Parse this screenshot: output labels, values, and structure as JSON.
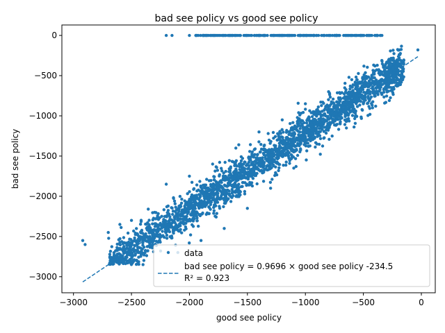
{
  "chart_data": {
    "type": "scatter",
    "title": "bad see policy vs good see policy",
    "xlabel": "good see policy",
    "ylabel": "bad see policy",
    "xlim": [
      -3100,
      120
    ],
    "ylim": [
      -3200,
      130
    ],
    "xticks": [
      -3000,
      -2500,
      -2000,
      -1500,
      -1000,
      -500,
      0
    ],
    "yticks": [
      -3000,
      -2500,
      -2000,
      -1500,
      -1000,
      -500,
      0
    ],
    "xtick_labels": [
      "−3000",
      "−2500",
      "−2000",
      "−1500",
      "−1000",
      "−500",
      "0"
    ],
    "ytick_labels": [
      "−3000",
      "−2500",
      "−2000",
      "−1500",
      "−1000",
      "−500",
      "0"
    ],
    "grid": false,
    "legend_position": "lower-right",
    "color": "#1f77b4",
    "series": [
      {
        "name": "data",
        "kind": "points",
        "description_points": [
          [
            -2920,
            -2550
          ],
          [
            -2900,
            -2600
          ],
          [
            -2700,
            -2450
          ],
          [
            -2650,
            -2800
          ],
          [
            -2600,
            -2350
          ],
          [
            -2500,
            -2300
          ],
          [
            -2400,
            -2850
          ],
          [
            -2300,
            -2200
          ],
          [
            -2200,
            -1850
          ],
          [
            -2100,
            -2700
          ],
          [
            -2000,
            -1750
          ],
          [
            -1900,
            -2550
          ],
          [
            -1800,
            -1600
          ],
          [
            -1700,
            -2400
          ],
          [
            -1600,
            -1400
          ],
          [
            -1500,
            -2150
          ],
          [
            -1400,
            -1200
          ],
          [
            -1300,
            -1900
          ],
          [
            -1200,
            -1050
          ],
          [
            -1100,
            -1650
          ],
          [
            -1000,
            -850
          ],
          [
            -900,
            -1350
          ],
          [
            -800,
            -700
          ],
          [
            -700,
            -1100
          ],
          [
            -600,
            -550
          ],
          [
            -500,
            -850
          ],
          [
            -400,
            -380
          ],
          [
            -300,
            -600
          ],
          [
            -200,
            -300
          ],
          [
            -30,
            -180
          ],
          [
            -2200,
            0
          ],
          [
            -2150,
            0
          ],
          [
            -2000,
            0
          ],
          [
            -1800,
            0
          ],
          [
            -1600,
            0
          ],
          [
            -1400,
            0
          ],
          [
            -1200,
            0
          ],
          [
            -1000,
            0
          ],
          [
            -800,
            0
          ],
          [
            -600,
            0
          ],
          [
            -510,
            0
          ],
          [
            -340,
            0
          ]
        ]
      },
      {
        "name": "bad see policy = 0.9696 × good see policy -234.5",
        "kind": "fit-line",
        "slope": 0.9696,
        "intercept": -234.5,
        "x_range": [
          -2920,
          -30
        ]
      }
    ],
    "legend": {
      "entries": [
        "data",
        "bad see policy = 0.9696 × good see policy -234.5"
      ],
      "extra_line": "R² = 0.923"
    }
  }
}
